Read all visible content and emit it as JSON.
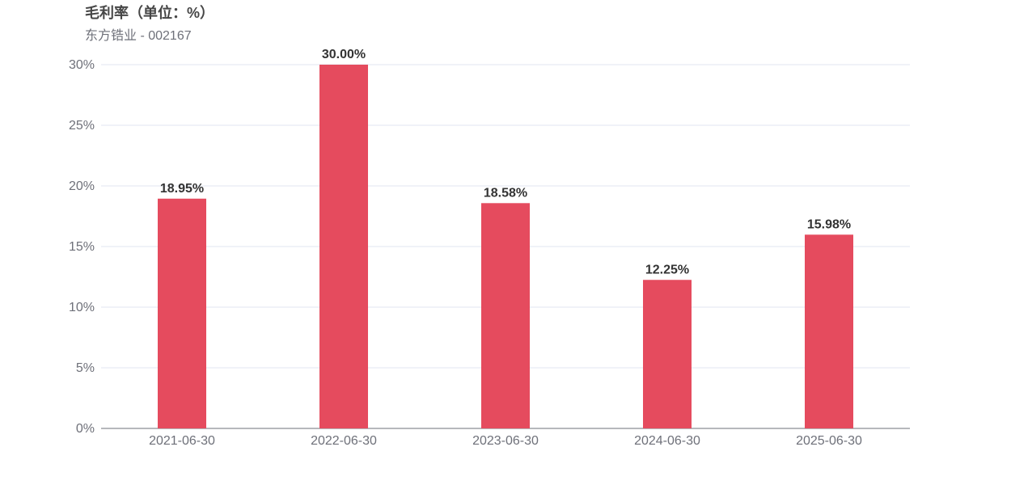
{
  "chart_data": {
    "type": "bar",
    "title": "毛利率（单位：%）",
    "subtitle": "东方锆业 - 002167",
    "categories": [
      "2021-06-30",
      "2022-06-30",
      "2023-06-30",
      "2024-06-30",
      "2025-06-30"
    ],
    "values": [
      18.95,
      30.0,
      18.58,
      12.25,
      15.98
    ],
    "data_labels": [
      "18.95%",
      "30.00%",
      "18.58%",
      "12.25%",
      "15.98%"
    ],
    "yticks": [
      "0%",
      "5%",
      "10%",
      "15%",
      "20%",
      "25%",
      "30%"
    ],
    "ylim": [
      0,
      30
    ],
    "grid": true,
    "bar_color": "#e54b5e",
    "xlabel": "",
    "ylabel": ""
  }
}
